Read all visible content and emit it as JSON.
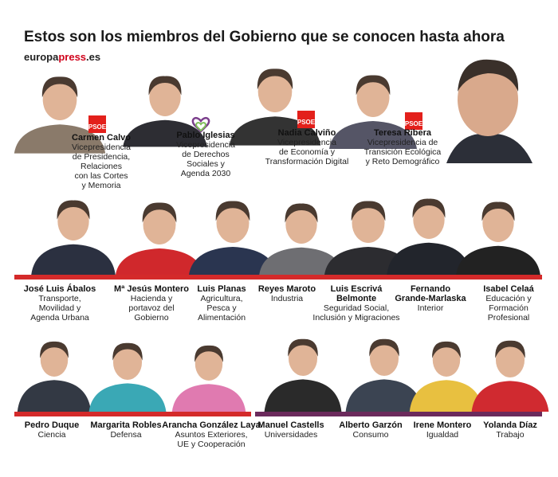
{
  "header": {
    "title": "Estos son los miembros del Gobierno que se conocen hasta ahora",
    "source": {
      "prefix": "europa",
      "highlight": "press",
      "suffix": ".es"
    }
  },
  "members": [
    {
      "name": [
        "Carmen Calvo"
      ],
      "role": [
        "Vicepresidencia",
        "de Presidencia,",
        "Relaciones",
        "con las Cortes",
        "y Memoria"
      ],
      "badge": "PSOE"
    },
    {
      "name": [
        "Pablo Iglesias"
      ],
      "role": [
        "Vicepresidencia",
        "de Derechos",
        "Sociales y",
        "Agenda 2030"
      ]
    },
    {
      "name": [
        "Nadia Calviño"
      ],
      "role": [
        "Vicepresidencia",
        "de Economía y",
        "Transformación Digital"
      ],
      "badge": "PSOE"
    },
    {
      "name": [
        "Teresa Ribera"
      ],
      "role": [
        "Vicepresidencia de",
        "Transición Ecológica",
        "y Reto Demográfico"
      ],
      "badge": "PSOE"
    },
    {
      "name": [
        "José Luis Ábalos"
      ],
      "role": [
        "Transporte,",
        "Movilidad y",
        "Agenda Urbana"
      ]
    },
    {
      "name": [
        "Mª Jesús Montero"
      ],
      "role": [
        "Hacienda y",
        "portavoz del",
        "Gobierno"
      ]
    },
    {
      "name": [
        "Luis Planas"
      ],
      "role": [
        "Agricultura,",
        "Pesca y",
        "Alimentación"
      ]
    },
    {
      "name": [
        "Reyes Maroto"
      ],
      "role": [
        "Industria"
      ]
    },
    {
      "name": [
        "Luis Escrivá",
        "Belmonte"
      ],
      "role": [
        "Seguridad Social,",
        "Inclusión y Migraciones"
      ]
    },
    {
      "name": [
        "Fernando",
        "Grande-Marlaska"
      ],
      "role": [
        "Interior"
      ]
    },
    {
      "name": [
        "Isabel Celaá"
      ],
      "role": [
        "Educación y",
        "Formación",
        "Profesional"
      ]
    },
    {
      "name": [
        "Pedro Duque"
      ],
      "role": [
        "Ciencia"
      ]
    },
    {
      "name": [
        "Margarita Robles"
      ],
      "role": [
        "Defensa"
      ]
    },
    {
      "name": [
        "Arancha González Laya"
      ],
      "role": [
        "Asuntos Exteriores,",
        "UE y Cooperación"
      ]
    },
    {
      "name": [
        "Manuel Castells"
      ],
      "role": [
        "Universidades"
      ]
    },
    {
      "name": [
        "Alberto Garzón"
      ],
      "role": [
        "Consumo"
      ]
    },
    {
      "name": [
        "Irene Montero"
      ],
      "role": [
        "Igualdad"
      ]
    },
    {
      "name": [
        "Yolanda Díaz"
      ],
      "role": [
        "Trabajo"
      ]
    }
  ]
}
